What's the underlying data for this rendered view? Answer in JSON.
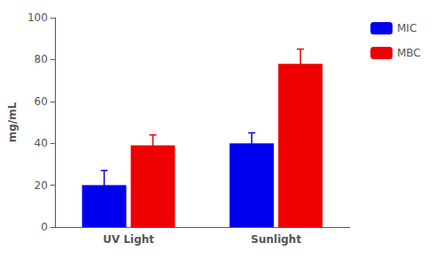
{
  "chart_data": {
    "type": "bar",
    "categories": [
      "UV Light",
      "Sunlight"
    ],
    "series": [
      {
        "name": "MIC",
        "color": "#0000EE",
        "values": [
          20,
          40
        ],
        "errors": [
          7,
          5
        ]
      },
      {
        "name": "MBC",
        "color": "#EE0000",
        "values": [
          39,
          78
        ],
        "errors": [
          5,
          7
        ]
      }
    ],
    "ylabel": "mg/mL",
    "ylim": [
      0,
      100
    ],
    "yticks": [
      0,
      20,
      40,
      60,
      80,
      100
    ],
    "grid": false,
    "legend": "right"
  }
}
